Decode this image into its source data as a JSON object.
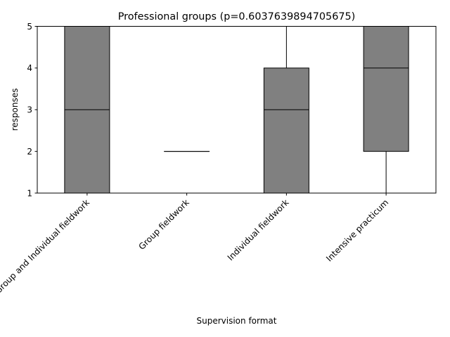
{
  "chart_data": {
    "type": "box",
    "title": "Professional groups (p=0.6037639894705675)",
    "xlabel": "Supervision format",
    "ylabel": "responses",
    "ylim": [
      1,
      5
    ],
    "yticks": [
      1,
      2,
      3,
      4,
      5
    ],
    "grid": false,
    "box_color": "#808080",
    "categories": [
      "Group and Individual fieldwork",
      "Group fieldwork",
      "Individual fieldwork",
      "Intensive practicum"
    ],
    "boxes": [
      {
        "whisker_low": 1,
        "q1": 1,
        "median": 3,
        "q3": 5,
        "whisker_high": 5
      },
      {
        "whisker_low": 2,
        "q1": 2,
        "median": 2,
        "q3": 2,
        "whisker_high": 2
      },
      {
        "whisker_low": 1,
        "q1": 1,
        "median": 3,
        "q3": 4,
        "whisker_high": 5
      },
      {
        "whisker_low": 1,
        "q1": 2,
        "median": 4,
        "q3": 5,
        "whisker_high": 5
      }
    ]
  }
}
